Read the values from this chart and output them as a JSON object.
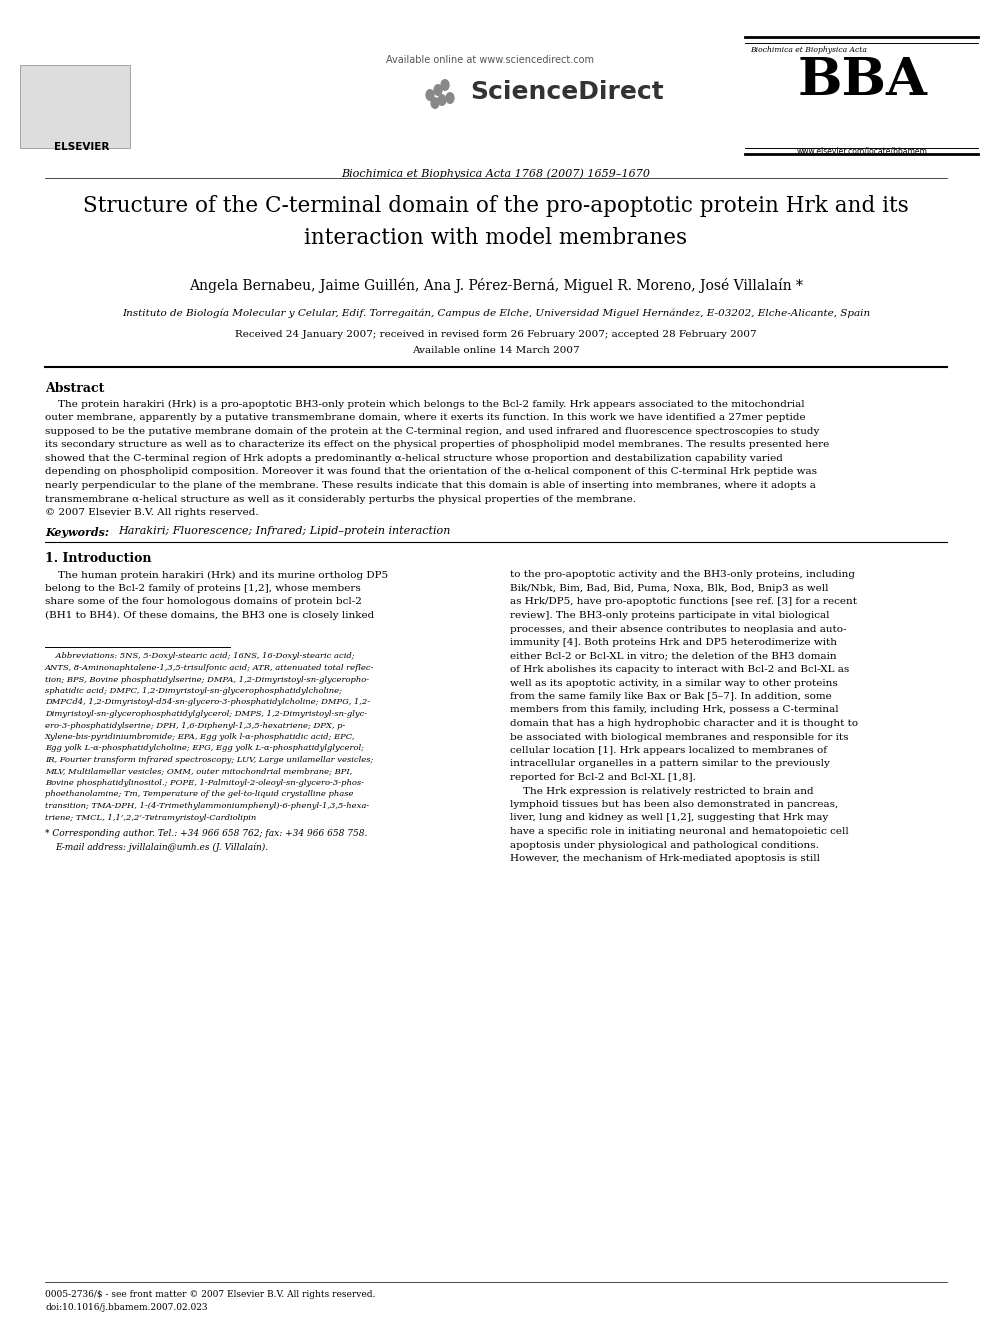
{
  "bg_color": "#ffffff",
  "title_line1": "Structure of the C-terminal domain of the pro-apoptotic protein Hrk and its",
  "title_line2": "interaction with model membranes",
  "authors": "Angela Bernabeu, Jaime Guillén, Ana J. Pérez-Berná, Miguel R. Moreno, José Villalaín *",
  "affiliation": "Instituto de Biología Molecular y Celular, Edif. Torregaitán, Campus de Elche, Universidad Miguel Hernández, E-03202, Elche-Alicante, Spain",
  "dates": "Received 24 January 2007; received in revised form 26 February 2007; accepted 28 February 2007",
  "available": "Available online 14 March 2007",
  "journal_header": "Biochimica et Biophysica Acta 1768 (2007) 1659–1670",
  "available_online": "Available online at www.sciencedirect.com",
  "sciencedirect": "ScienceDirect",
  "bba_subtitle": "Biochimica et Biophysica Acta",
  "bba_logo": "BBA",
  "elsevier_url": "www.elsevier.com/locate/bbamem",
  "elsevier_label": "ELSEVIER",
  "abstract_title": "Abstract",
  "keywords_label": "Keywords:",
  "keywords": "Harakiri; Fluorescence; Infrared; Lipid–protein interaction",
  "intro_title": "1. Introduction",
  "bottom_line1": "0005-2736/$ - see front matter © 2007 Elsevier B.V. All rights reserved.",
  "bottom_line2": "doi:10.1016/j.bbamem.2007.02.023"
}
